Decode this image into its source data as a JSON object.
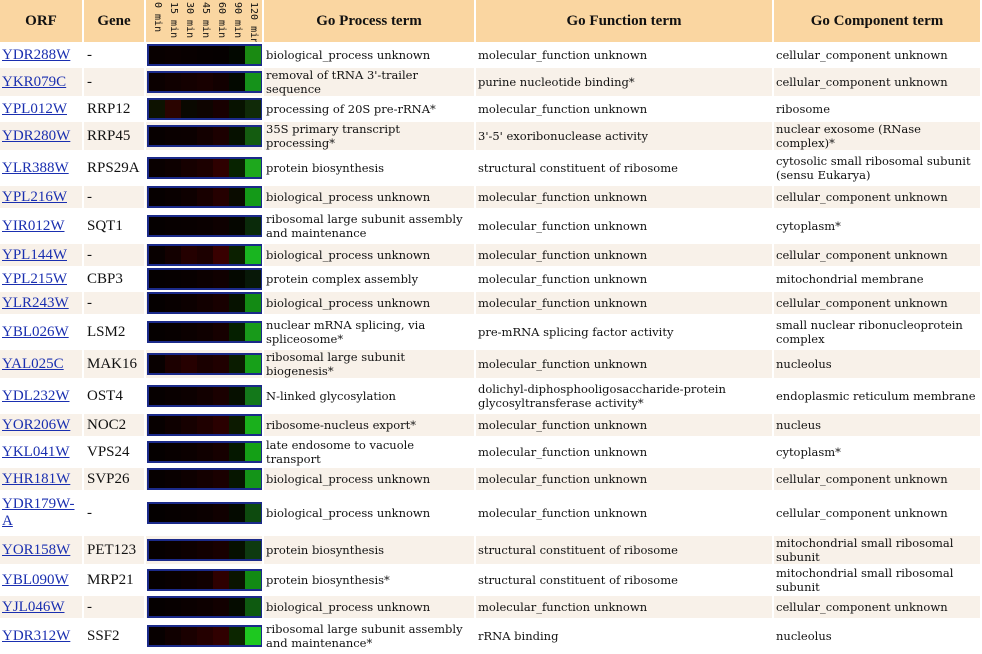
{
  "headers": {
    "orf": "ORF",
    "gene": "Gene",
    "process": "Go Process term",
    "function": "Go Function term",
    "component": "Go Component term"
  },
  "time_points": [
    "0 min",
    "15 min",
    "30 min",
    "45 min",
    "60 min",
    "90 min",
    "120 min"
  ],
  "rows": [
    {
      "orf": "YDR288W",
      "gene": "-",
      "process": "biological_process unknown",
      "function": "molecular_function unknown",
      "component": "cellular_component unknown",
      "heat": [
        "#080000",
        "#0a0000",
        "#080000",
        "#060000",
        "#050000",
        "#020800",
        "#1a8a12"
      ]
    },
    {
      "orf": "YKR079C",
      "gene": "-",
      "process": "removal of tRNA 3'-trailer sequence",
      "function": "purine nucleotide binding*",
      "component": "cellular_component unknown",
      "heat": [
        "#0b0000",
        "#100000",
        "#140000",
        "#180000",
        "#120000",
        "#030900",
        "#15921a"
      ]
    },
    {
      "orf": "YPL012W",
      "gene": "RRP12",
      "process": "processing of 20S pre-rRNA*",
      "function": "molecular_function unknown",
      "component": "ribosome",
      "heat": [
        "#0d1200",
        "#2a0400",
        "#0a0800",
        "#0e0400",
        "#180000",
        "#071200",
        "#102a08"
      ]
    },
    {
      "orf": "YDR280W",
      "gene": "RRP45",
      "process": "35S primary transcript processing*",
      "function": "3'-5' exoribonuclease activity",
      "component": "nuclear exosome (RNase complex)*",
      "heat": [
        "#070000",
        "#0a0000",
        "#0b0000",
        "#130000",
        "#1c0000",
        "#061100",
        "#145c10"
      ]
    },
    {
      "orf": "YLR388W",
      "gene": "RPS29A",
      "process": "protein biosynthesis",
      "function": "structural constituent of ribosome",
      "component": "cytosolic small ribosomal subunit (sensu Eukarya)",
      "heat": [
        "#090000",
        "#0d0000",
        "#160000",
        "#1c0000",
        "#2e0000",
        "#072300",
        "#1ea81d"
      ]
    },
    {
      "orf": "YPL216W",
      "gene": "-",
      "process": "biological_process unknown",
      "function": "molecular_function unknown",
      "component": "cellular_component unknown",
      "heat": [
        "#060000",
        "#090000",
        "#0e0000",
        "#180000",
        "#250000",
        "#0a0c00",
        "#149a18"
      ]
    },
    {
      "orf": "YIR012W",
      "gene": "SQT1",
      "process": "ribosomal large subunit assembly and maintenance",
      "function": "molecular_function unknown",
      "component": "cytoplasm*",
      "heat": [
        "#050000",
        "#070000",
        "#080000",
        "#0a0000",
        "#0e0000",
        "#050600",
        "#0a2a0a"
      ]
    },
    {
      "orf": "YPL144W",
      "gene": "-",
      "process": "biological_process unknown",
      "function": "molecular_function unknown",
      "component": "cellular_component unknown",
      "heat": [
        "#080000",
        "#130000",
        "#240000",
        "#1c0000",
        "#380000",
        "#0b2000",
        "#19b520"
      ]
    },
    {
      "orf": "YPL215W",
      "gene": "CBP3",
      "process": "protein complex assembly",
      "function": "molecular_function unknown",
      "component": "mitochondrial membrane",
      "heat": [
        "#050000",
        "#060000",
        "#080000",
        "#0c0000",
        "#100000",
        "#040800",
        "#081808"
      ]
    },
    {
      "orf": "YLR243W",
      "gene": "-",
      "process": "biological_process unknown",
      "function": "molecular_function unknown",
      "component": "cellular_component unknown",
      "heat": [
        "#050000",
        "#080000",
        "#0c0000",
        "#120000",
        "#180000",
        "#061200",
        "#138a14"
      ]
    },
    {
      "orf": "YBL026W",
      "gene": "LSM2",
      "process": "nuclear mRNA splicing, via spliceosome*",
      "function": "pre-mRNA splicing factor activity",
      "component": "small nuclear ribonucleoprotein complex",
      "heat": [
        "#050000",
        "#070000",
        "#0b0000",
        "#0f0000",
        "#160000",
        "#052000",
        "#189a1a"
      ]
    },
    {
      "orf": "YAL025C",
      "gene": "MAK16",
      "process": "ribosomal large subunit biogenesis*",
      "function": "molecular_function unknown",
      "component": "nucleolus",
      "heat": [
        "#080000",
        "#1c0000",
        "#260000",
        "#1a0000",
        "#200000",
        "#0a1c00",
        "#17a019"
      ]
    },
    {
      "orf": "YDL232W",
      "gene": "OST4",
      "process": "N-linked glycosylation",
      "function": "dolichyl-diphosphooligosaccharide-protein glycosyltransferase activity*",
      "component": "endoplasmic reticulum membrane",
      "heat": [
        "#060000",
        "#090000",
        "#0c0000",
        "#120000",
        "#1a0000",
        "#061000",
        "#13781a"
      ]
    },
    {
      "orf": "YOR206W",
      "gene": "NOC2",
      "process": "ribosome-nucleus export*",
      "function": "molecular_function unknown",
      "component": "nucleus",
      "heat": [
        "#070000",
        "#0e0000",
        "#160000",
        "#1f0000",
        "#2a0000",
        "#0c1a00",
        "#1ab01c"
      ]
    },
    {
      "orf": "YKL041W",
      "gene": "VPS24",
      "process": "late endosome to vacuole transport",
      "function": "molecular_function unknown",
      "component": "cytoplasm*",
      "heat": [
        "#050000",
        "#080000",
        "#0b0000",
        "#100000",
        "#160000",
        "#051800",
        "#14a016"
      ]
    },
    {
      "orf": "YHR181W",
      "gene": "SVP26",
      "process": "biological_process unknown",
      "function": "molecular_function unknown",
      "component": "cellular_component unknown",
      "heat": [
        "#060000",
        "#090000",
        "#0e0000",
        "#140000",
        "#1a0000",
        "#061600",
        "#149418"
      ]
    },
    {
      "orf": "YDR179W-A",
      "gene": "-",
      "process": "biological_process unknown",
      "function": "molecular_function unknown",
      "component": "cellular_component unknown",
      "heat": [
        "#040000",
        "#060000",
        "#080000",
        "#0b0000",
        "#100000",
        "#040a00",
        "#0d4a0e"
      ]
    },
    {
      "orf": "YOR158W",
      "gene": "PET123",
      "process": "protein biosynthesis",
      "function": "structural constituent of ribosome",
      "component": "mitochondrial small ribosomal subunit",
      "heat": [
        "#060000",
        "#090000",
        "#0d0000",
        "#120000",
        "#180000",
        "#061000",
        "#0e3a10"
      ]
    },
    {
      "orf": "YBL090W",
      "gene": "MRP21",
      "process": "protein biosynthesis*",
      "function": "structural constituent of ribosome",
      "component": "mitochondrial small ribosomal subunit",
      "heat": [
        "#050000",
        "#080000",
        "#0c0000",
        "#110000",
        "#2e0000",
        "#0a1400",
        "#128a14"
      ]
    },
    {
      "orf": "YJL046W",
      "gene": "-",
      "process": "biological_process unknown",
      "function": "molecular_function unknown",
      "component": "cellular_component unknown",
      "heat": [
        "#050000",
        "#070000",
        "#0a0000",
        "#0d0000",
        "#120000",
        "#050c00",
        "#0e5a10"
      ]
    },
    {
      "orf": "YDR312W",
      "gene": "SSF2",
      "process": "ribosomal large subunit assembly and maintenance*",
      "function": "rRNA binding",
      "component": "nucleolus",
      "heat": [
        "#070000",
        "#100000",
        "#1a0000",
        "#240000",
        "#300000",
        "#0c2600",
        "#1ec820"
      ]
    }
  ]
}
